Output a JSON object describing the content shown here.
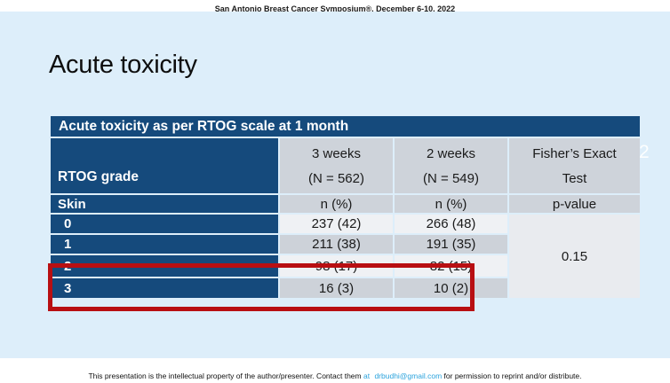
{
  "banner": {
    "text": "San Antonio Breast Cancer Symposium®, December 6-10, 2022"
  },
  "slide": {
    "title": "Acute toxicity",
    "page_number": "2"
  },
  "table": {
    "caption": "Acute toxicity as per RTOG scale at 1 month",
    "row_header_title": "RTOG grade",
    "row_header_subtitle": "Skin",
    "columns": [
      {
        "line1": "3 weeks",
        "line2": "(N = 562)",
        "unit": "n (%)"
      },
      {
        "line1": "2 weeks",
        "line2": "(N = 549)",
        "unit": "n (%)"
      },
      {
        "line1": "Fisher’s Exact",
        "line2": "Test",
        "unit": "p-value"
      }
    ],
    "rows": [
      {
        "grade": "0",
        "three_weeks": "237 (42)",
        "two_weeks": "266 (48)"
      },
      {
        "grade": "1",
        "three_weeks": "211 (38)",
        "two_weeks": "191 (35)"
      },
      {
        "grade": "2",
        "three_weeks": "98 (17)",
        "two_weeks": "82 (15)"
      },
      {
        "grade": "3",
        "three_weeks": "16 (3)",
        "two_weeks": "10 (2)"
      }
    ],
    "p_value": "0.15"
  },
  "annotation": {
    "highlight_color": "#b80f12",
    "highlighted_grades": "2 and 3"
  },
  "footer": {
    "text_before": "This presentation is the intellectual property of the author/presenter. Contact them",
    "link_at": "at",
    "link_email": "drbudhi@gmail.com",
    "text_after": "for permission to reprint and/or distribute."
  },
  "colors": {
    "navy": "#154a7c",
    "slide_background": "#ddeefa",
    "header_gray": "#ced3da",
    "row_light": "#eff1f4",
    "row_dark": "#cdd2d9",
    "link_blue": "#2ba3dd"
  }
}
